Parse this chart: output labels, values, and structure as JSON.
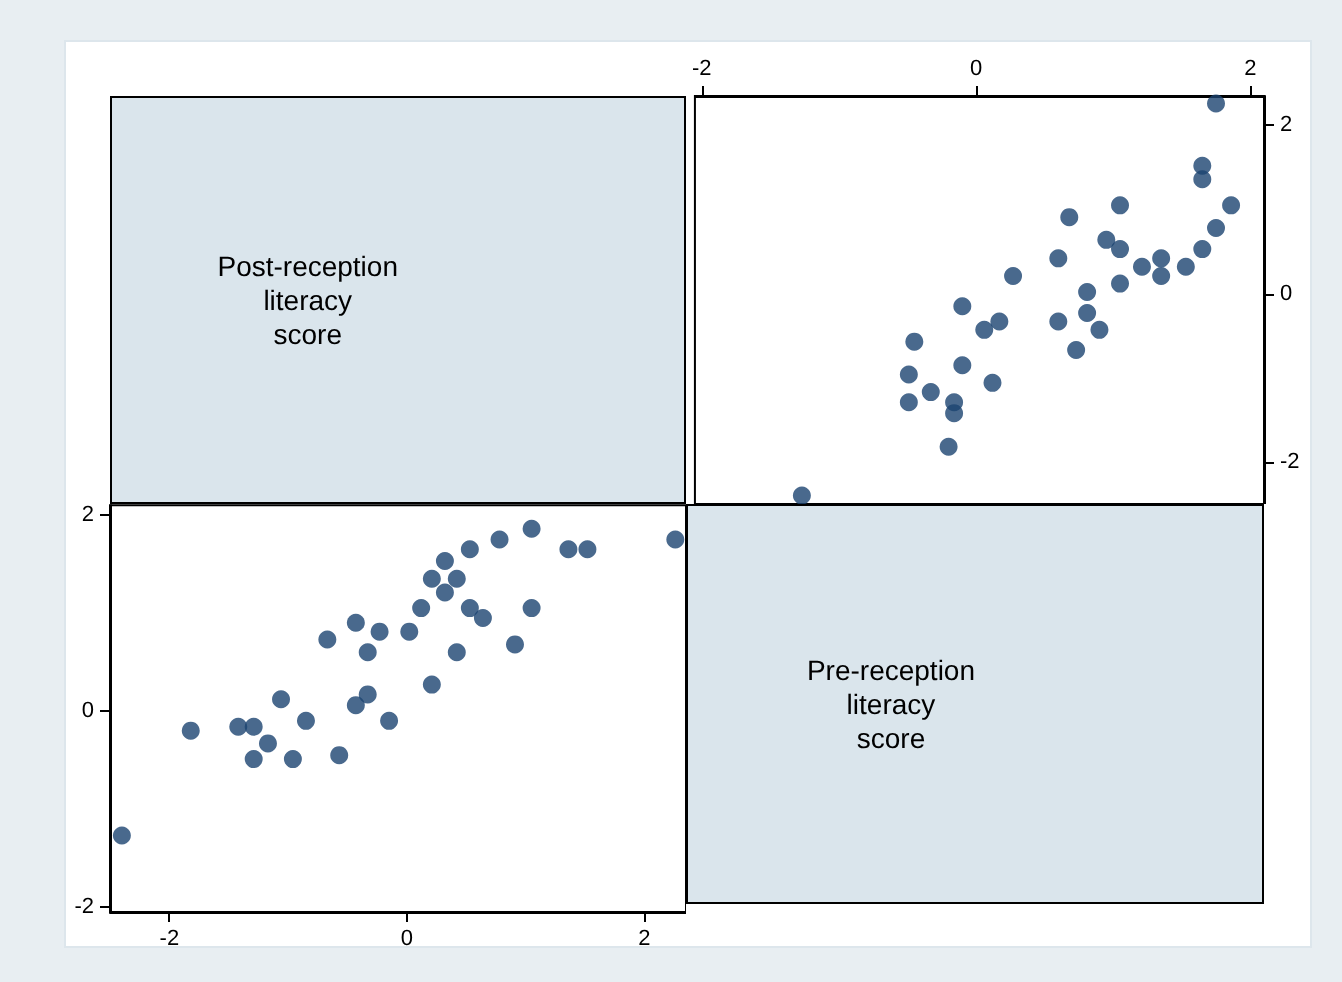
{
  "chart_data": [
    {
      "type": "other",
      "title": "Post-reception\nliteracy\nscore"
    },
    {
      "type": "scatter",
      "marker": "circle",
      "grid": false,
      "x": [
        -1.27,
        -0.2,
        -0.16,
        -0.16,
        -0.49,
        -0.33,
        0.12,
        -0.49,
        -0.1,
        0.73,
        -0.45,
        0.9,
        0.06,
        0.6,
        0.17,
        0.81,
        -0.1,
        0.81,
        1.05,
        1.35,
        0.27,
        1.53,
        1.21,
        1.35,
        0.6,
        1.65,
        1.05,
        0.95,
        1.75,
        0.68,
        1.86,
        1.05,
        1.65,
        1.65,
        1.75
      ],
      "values": [
        -2.4,
        -1.82,
        -1.42,
        -1.29,
        -1.29,
        -1.17,
        -1.06,
        -0.96,
        -0.85,
        -0.67,
        -0.57,
        -0.43,
        -0.43,
        -0.33,
        -0.33,
        -0.23,
        -0.15,
        0.02,
        0.12,
        0.21,
        0.21,
        0.32,
        0.32,
        0.42,
        0.42,
        0.53,
        0.53,
        0.64,
        0.78,
        0.91,
        1.05,
        1.05,
        1.36,
        1.52,
        2.26
      ],
      "color": "#1b4471",
      "xlim": [
        -2.05,
        2.1
      ],
      "ylim": [
        -2.5,
        2.35
      ],
      "xticks": [
        -2,
        0,
        2
      ],
      "yticks": [
        -2,
        0,
        2
      ]
    },
    {
      "type": "scatter",
      "marker": "circle",
      "grid": false,
      "x": [
        -2.4,
        -1.82,
        -1.42,
        -1.29,
        -1.29,
        -1.17,
        -1.06,
        -0.96,
        -0.85,
        -0.67,
        -0.57,
        -0.43,
        -0.43,
        -0.33,
        -0.33,
        -0.23,
        -0.15,
        0.02,
        0.12,
        0.21,
        0.21,
        0.32,
        0.32,
        0.42,
        0.42,
        0.53,
        0.53,
        0.64,
        0.78,
        0.91,
        1.05,
        1.05,
        1.36,
        1.52,
        2.26
      ],
      "values": [
        -1.27,
        -0.2,
        -0.16,
        -0.16,
        -0.49,
        -0.33,
        0.12,
        -0.49,
        -0.1,
        0.73,
        -0.45,
        0.9,
        0.06,
        0.6,
        0.17,
        0.81,
        -0.1,
        0.81,
        1.05,
        1.35,
        0.27,
        1.53,
        1.21,
        1.35,
        0.6,
        1.65,
        1.05,
        0.95,
        1.75,
        0.68,
        1.86,
        1.05,
        1.65,
        1.65,
        1.75
      ],
      "color": "#1b4471",
      "xlim": [
        -2.5,
        2.35
      ],
      "ylim": [
        -2.05,
        2.1
      ],
      "xticks": [
        -2,
        0,
        2
      ],
      "yticks": [
        -2,
        0,
        2
      ]
    },
    {
      "type": "other",
      "title": "Pre-reception\nliteracy\nscore"
    }
  ]
}
